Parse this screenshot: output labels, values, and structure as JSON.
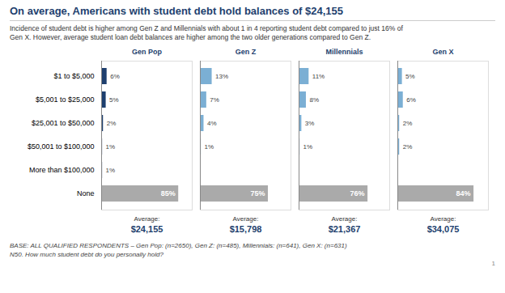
{
  "chart_data": {
    "type": "bar",
    "orientation": "horizontal",
    "title": "On average, Americans with student debt hold balances of $24,155",
    "subtitle": "Incidence of student debt is higher among Gen Z and Millennials with about 1 in 4 reporting student debt compared to just 16% of\nGen X.  However, average student loan debt balances are higher among the two older generations compared to Gen Z.",
    "categories": [
      "$1 to $5,000",
      "$5,001 to $25,000",
      "$25,001 to $50,000",
      "$50,001 to $100,000",
      "More than $100,000",
      "None"
    ],
    "series": [
      {
        "name": "Gen Pop",
        "values": [
          6,
          5,
          2,
          1,
          1,
          85
        ],
        "value_labels": [
          "6%",
          "5%",
          "2%",
          "1%",
          "1%",
          "85%"
        ],
        "colors": [
          "#1e3f6e",
          "#1e3f6e",
          "#1e3f6e",
          "#1e3f6e",
          "#1e3f6e",
          "#aaaaaa"
        ],
        "average": {
          "value": 24155,
          "label": "$24,155"
        }
      },
      {
        "name": "Gen Z",
        "values": [
          13,
          7,
          4,
          1,
          0,
          75
        ],
        "value_labels": [
          "13%",
          "7%",
          "4%",
          "1%",
          null,
          "75%"
        ],
        "colors": [
          "#7bafd4",
          "#7bafd4",
          "#7bafd4",
          "#7bafd4",
          "#7bafd4",
          "#aaaaaa"
        ],
        "average": {
          "value": 15798,
          "label": "$15,798"
        }
      },
      {
        "name": "Millennials",
        "values": [
          11,
          8,
          3,
          1,
          0,
          76
        ],
        "value_labels": [
          "11%",
          "8%",
          "3%",
          "1%",
          null,
          "76%"
        ],
        "colors": [
          "#7bafd4",
          "#7bafd4",
          "#7bafd4",
          "#7bafd4",
          "#7bafd4",
          "#aaaaaa"
        ],
        "average": {
          "value": 21367,
          "label": "$21,367"
        }
      },
      {
        "name": "Gen X",
        "values": [
          5,
          6,
          2,
          2,
          0,
          84
        ],
        "value_labels": [
          "5%",
          "6%",
          "2%",
          "2%",
          null,
          "84%"
        ],
        "colors": [
          "#7bafd4",
          "#7bafd4",
          "#7bafd4",
          "#7bafd4",
          "#7bafd4",
          "#aaaaaa"
        ],
        "average": {
          "value": 34075,
          "label": "$34,075"
        }
      }
    ],
    "average_title": "Average:",
    "xlim": [
      0,
      100
    ],
    "tick_labels": "y",
    "data_labels": true,
    "footnotes": [
      "BASE: ALL QUALIFIED RESPONDENTS – Gen Pop: (n=2650), Gen Z: (n=485), Millennials: (n=641), Gen X: (n=631)",
      "N50. How much student debt do you personally hold?"
    ],
    "page_number": "1"
  }
}
